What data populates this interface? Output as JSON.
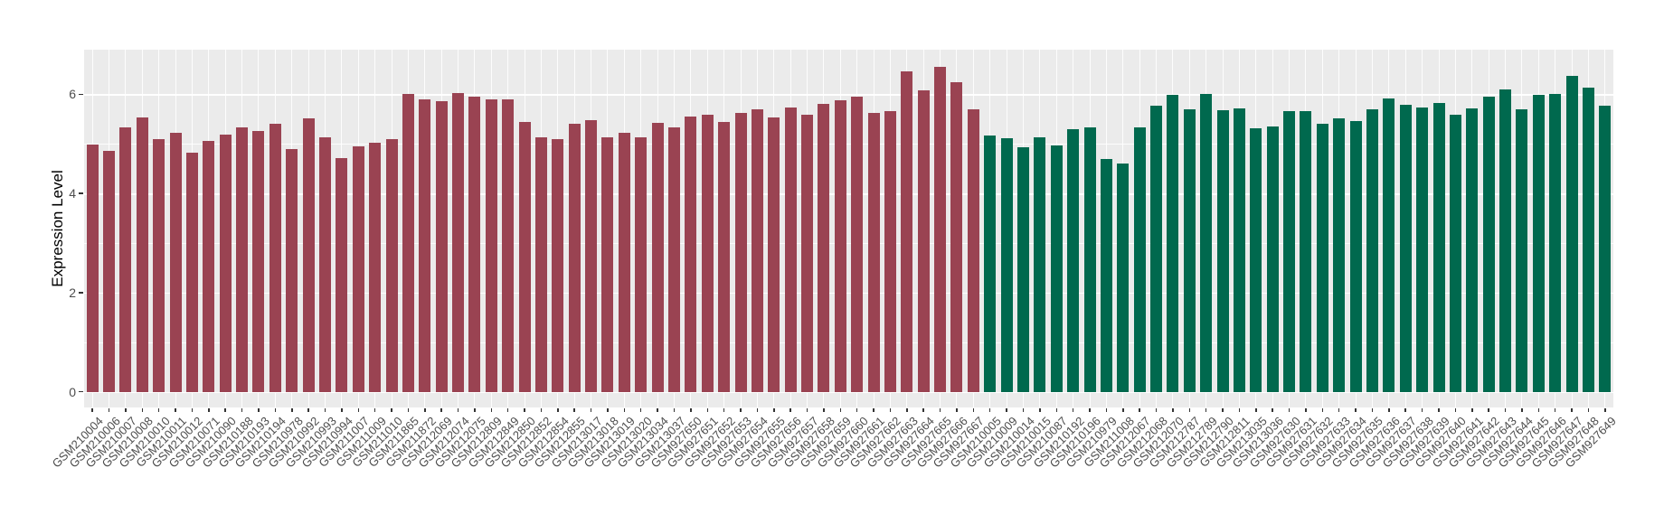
{
  "chart_data": {
    "type": "bar",
    "title": "",
    "xlabel": "",
    "ylabel": "Expression Level",
    "ylim": [
      0,
      6.9
    ],
    "ytick_labels": [
      "0",
      "2",
      "4",
      "6"
    ],
    "ytick_values": [
      0,
      2,
      4,
      6
    ],
    "minor_ytick_values": [
      1,
      3,
      5
    ],
    "grid": "on",
    "legend": "none",
    "panel_bg_color": "#EBEBEB",
    "grid_color": "#FFFFFF",
    "group_colors": {
      "red": "#9A4352",
      "green": "#00694E"
    },
    "bars": [
      {
        "label": "GSM210004",
        "value": 4.99,
        "group": "red"
      },
      {
        "label": "GSM210006",
        "value": 4.86,
        "group": "red"
      },
      {
        "label": "GSM210007",
        "value": 5.34,
        "group": "red"
      },
      {
        "label": "GSM210008",
        "value": 5.53,
        "group": "red"
      },
      {
        "label": "GSM210010",
        "value": 5.09,
        "group": "red"
      },
      {
        "label": "GSM210011",
        "value": 5.23,
        "group": "red"
      },
      {
        "label": "GSM210012",
        "value": 4.82,
        "group": "red"
      },
      {
        "label": "GSM210071",
        "value": 5.06,
        "group": "red"
      },
      {
        "label": "GSM210090",
        "value": 5.18,
        "group": "red"
      },
      {
        "label": "GSM210188",
        "value": 5.33,
        "group": "red"
      },
      {
        "label": "GSM210193",
        "value": 5.26,
        "group": "red"
      },
      {
        "label": "GSM210194",
        "value": 5.4,
        "group": "red"
      },
      {
        "label": "GSM210978",
        "value": 4.89,
        "group": "red"
      },
      {
        "label": "GSM210992",
        "value": 5.51,
        "group": "red"
      },
      {
        "label": "GSM210993",
        "value": 5.13,
        "group": "red"
      },
      {
        "label": "GSM210994",
        "value": 4.72,
        "group": "red"
      },
      {
        "label": "GSM211007",
        "value": 4.94,
        "group": "red"
      },
      {
        "label": "GSM211009",
        "value": 5.02,
        "group": "red"
      },
      {
        "label": "GSM211010",
        "value": 5.09,
        "group": "red"
      },
      {
        "label": "GSM211865",
        "value": 6.0,
        "group": "red"
      },
      {
        "label": "GSM211872",
        "value": 5.89,
        "group": "red"
      },
      {
        "label": "GSM212069",
        "value": 5.86,
        "group": "red"
      },
      {
        "label": "GSM212074",
        "value": 6.03,
        "group": "red"
      },
      {
        "label": "GSM212075",
        "value": 5.96,
        "group": "red"
      },
      {
        "label": "GSM212809",
        "value": 5.89,
        "group": "red"
      },
      {
        "label": "GSM212849",
        "value": 5.9,
        "group": "red"
      },
      {
        "label": "GSM212850",
        "value": 5.44,
        "group": "red"
      },
      {
        "label": "GSM212852",
        "value": 5.14,
        "group": "red"
      },
      {
        "label": "GSM212854",
        "value": 5.1,
        "group": "red"
      },
      {
        "label": "GSM212855",
        "value": 5.41,
        "group": "red"
      },
      {
        "label": "GSM213017",
        "value": 5.47,
        "group": "red"
      },
      {
        "label": "GSM213018",
        "value": 5.14,
        "group": "red"
      },
      {
        "label": "GSM213019",
        "value": 5.23,
        "group": "red"
      },
      {
        "label": "GSM213020",
        "value": 5.14,
        "group": "red"
      },
      {
        "label": "GSM213034",
        "value": 5.43,
        "group": "red"
      },
      {
        "label": "GSM213037",
        "value": 5.33,
        "group": "red"
      },
      {
        "label": "GSM927650",
        "value": 5.55,
        "group": "red"
      },
      {
        "label": "GSM927651",
        "value": 5.58,
        "group": "red"
      },
      {
        "label": "GSM927652",
        "value": 5.44,
        "group": "red"
      },
      {
        "label": "GSM927653",
        "value": 5.62,
        "group": "red"
      },
      {
        "label": "GSM927654",
        "value": 5.7,
        "group": "red"
      },
      {
        "label": "GSM927655",
        "value": 5.54,
        "group": "red"
      },
      {
        "label": "GSM927656",
        "value": 5.74,
        "group": "red"
      },
      {
        "label": "GSM927657",
        "value": 5.59,
        "group": "red"
      },
      {
        "label": "GSM927658",
        "value": 5.81,
        "group": "red"
      },
      {
        "label": "GSM927659",
        "value": 5.87,
        "group": "red"
      },
      {
        "label": "GSM927660",
        "value": 5.95,
        "group": "red"
      },
      {
        "label": "GSM927661",
        "value": 5.63,
        "group": "red"
      },
      {
        "label": "GSM927662",
        "value": 5.66,
        "group": "red"
      },
      {
        "label": "GSM927663",
        "value": 6.46,
        "group": "red"
      },
      {
        "label": "GSM927664",
        "value": 6.07,
        "group": "red"
      },
      {
        "label": "GSM927665",
        "value": 6.55,
        "group": "red"
      },
      {
        "label": "GSM927666",
        "value": 6.24,
        "group": "red"
      },
      {
        "label": "GSM927667",
        "value": 5.7,
        "group": "red"
      },
      {
        "label": "GSM210005",
        "value": 5.16,
        "group": "green"
      },
      {
        "label": "GSM210009",
        "value": 5.12,
        "group": "green"
      },
      {
        "label": "GSM210014",
        "value": 4.93,
        "group": "green"
      },
      {
        "label": "GSM210015",
        "value": 5.13,
        "group": "green"
      },
      {
        "label": "GSM210087",
        "value": 4.97,
        "group": "green"
      },
      {
        "label": "GSM210192",
        "value": 5.29,
        "group": "green"
      },
      {
        "label": "GSM210196",
        "value": 5.34,
        "group": "green"
      },
      {
        "label": "GSM210979",
        "value": 4.7,
        "group": "green"
      },
      {
        "label": "GSM211008",
        "value": 4.6,
        "group": "green"
      },
      {
        "label": "GSM212067",
        "value": 5.34,
        "group": "green"
      },
      {
        "label": "GSM212068",
        "value": 5.77,
        "group": "green"
      },
      {
        "label": "GSM212070",
        "value": 5.99,
        "group": "green"
      },
      {
        "label": "GSM212787",
        "value": 5.7,
        "group": "green"
      },
      {
        "label": "GSM212789",
        "value": 6.01,
        "group": "green"
      },
      {
        "label": "GSM212790",
        "value": 5.67,
        "group": "green"
      },
      {
        "label": "GSM212811",
        "value": 5.72,
        "group": "green"
      },
      {
        "label": "GSM213035",
        "value": 5.32,
        "group": "green"
      },
      {
        "label": "GSM213036",
        "value": 5.35,
        "group": "green"
      },
      {
        "label": "GSM927630",
        "value": 5.66,
        "group": "green"
      },
      {
        "label": "GSM927631",
        "value": 5.66,
        "group": "green"
      },
      {
        "label": "GSM927632",
        "value": 5.4,
        "group": "green"
      },
      {
        "label": "GSM927633",
        "value": 5.52,
        "group": "green"
      },
      {
        "label": "GSM927634",
        "value": 5.46,
        "group": "green"
      },
      {
        "label": "GSM927635",
        "value": 5.7,
        "group": "green"
      },
      {
        "label": "GSM927636",
        "value": 5.91,
        "group": "green"
      },
      {
        "label": "GSM927637",
        "value": 5.79,
        "group": "green"
      },
      {
        "label": "GSM927638",
        "value": 5.73,
        "group": "green"
      },
      {
        "label": "GSM927639",
        "value": 5.82,
        "group": "green"
      },
      {
        "label": "GSM927640",
        "value": 5.59,
        "group": "green"
      },
      {
        "label": "GSM927641",
        "value": 5.72,
        "group": "green"
      },
      {
        "label": "GSM927642",
        "value": 5.96,
        "group": "green"
      },
      {
        "label": "GSM927643",
        "value": 6.1,
        "group": "green"
      },
      {
        "label": "GSM927644",
        "value": 5.7,
        "group": "green"
      },
      {
        "label": "GSM927645",
        "value": 5.99,
        "group": "green"
      },
      {
        "label": "GSM927646",
        "value": 6.01,
        "group": "green"
      },
      {
        "label": "GSM927647",
        "value": 6.37,
        "group": "green"
      },
      {
        "label": "GSM927648",
        "value": 6.13,
        "group": "green"
      },
      {
        "label": "GSM927649",
        "value": 5.77,
        "group": "green"
      }
    ]
  }
}
